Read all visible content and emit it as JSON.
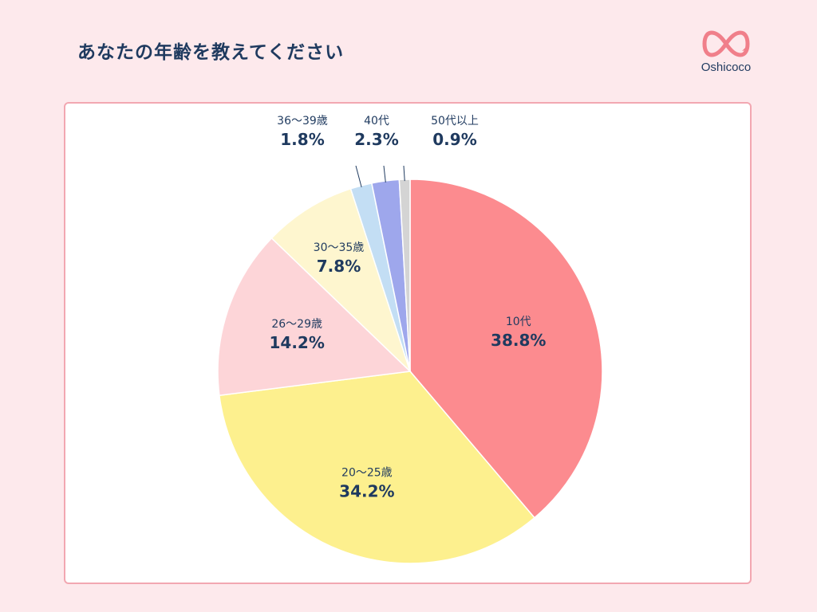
{
  "title": "あなたの年齢を教えてください",
  "logo": {
    "text": "Oshicoco",
    "icon": "infinity-heart-icon",
    "color": "#f07f8a"
  },
  "chart_data": {
    "type": "pie",
    "title": "あなたの年齢を教えてください",
    "start_angle_deg": 0,
    "direction": "clockwise",
    "slices": [
      {
        "label": "10代",
        "value": 38.8,
        "display": "38.8%",
        "color": "#fc8b8f"
      },
      {
        "label": "20〜25歳",
        "value": 34.2,
        "display": "34.2%",
        "color": "#fdf08e"
      },
      {
        "label": "26〜29歳",
        "value": 14.2,
        "display": "14.2%",
        "color": "#fdd5d8"
      },
      {
        "label": "30〜35歳",
        "value": 7.8,
        "display": "7.8%",
        "color": "#fef6cf"
      },
      {
        "label": "36〜39歳",
        "value": 1.8,
        "display": "1.8%",
        "color": "#c3def4"
      },
      {
        "label": "40代",
        "value": 2.3,
        "display": "2.3%",
        "color": "#9ea7ec"
      },
      {
        "label": "50代以上",
        "value": 0.9,
        "display": "0.9%",
        "color": "#d4d4d4"
      }
    ]
  }
}
